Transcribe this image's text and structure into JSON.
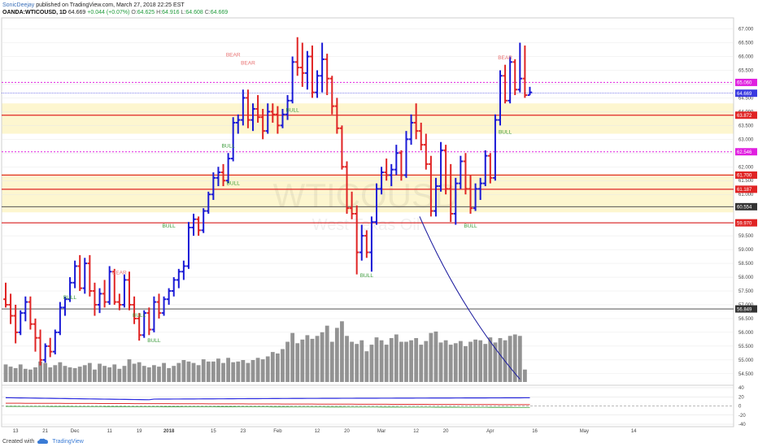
{
  "header": {
    "author": "SonicDeejay",
    "published": "published on TradingView.com, March 27, 2018 22:25 EST",
    "symbol": "OANDA:WTICOUSD, 1D",
    "last": "64.669",
    "change": "+0.044 (+0.07%)",
    "o_label": "O:",
    "o_value": "64.625",
    "h_label": "H:",
    "h_value": "64.916",
    "l_label": "L:",
    "l_value": "64.608",
    "c_label": "C:",
    "c_value": "64.669"
  },
  "footer": {
    "created_with": "Created with",
    "brand": "TradingView"
  },
  "watermark": {
    "symbol": "WTICOUSD",
    "description": "West Texas Oil"
  },
  "colors": {
    "up": "#1a1ad6",
    "down": "#e02424",
    "volume": "#808080",
    "level_red": "#e02424",
    "level_magenta": "#e020e0",
    "zone": "#fdf6cf",
    "last_price": "#3a3ae0",
    "curve": "#1a1a9e",
    "grid": "#e8e8e8"
  },
  "chart_data": {
    "type": "ohlc",
    "ylim": [
      54.2,
      67.4
    ],
    "y_ticks": [
      "67.000",
      "66.500",
      "66.000",
      "65.500",
      "65.000",
      "64.500",
      "64.000",
      "63.500",
      "63.000",
      "62.500",
      "62.000",
      "61.500",
      "61.000",
      "60.500",
      "60.000",
      "59.500",
      "59.000",
      "58.500",
      "58.000",
      "57.500",
      "57.000",
      "56.500",
      "56.000",
      "55.500",
      "55.000",
      "54.500"
    ],
    "x_ticks": [
      {
        "label": "13",
        "i": 2
      },
      {
        "label": "21",
        "i": 8
      },
      {
        "label": "Dec",
        "i": 14
      },
      {
        "label": "11",
        "i": 21
      },
      {
        "label": "19",
        "i": 27
      },
      {
        "label": "2018",
        "i": 33
      },
      {
        "label": "15",
        "i": 42
      },
      {
        "label": "23",
        "i": 48
      },
      {
        "label": "Feb",
        "i": 55
      },
      {
        "label": "12",
        "i": 63
      },
      {
        "label": "20",
        "i": 69
      },
      {
        "label": "Mar",
        "i": 76
      },
      {
        "label": "12",
        "i": 83
      },
      {
        "label": "20",
        "i": 89
      },
      {
        "label": "Apr",
        "i": 98
      },
      {
        "label": "16",
        "i": 107
      },
      {
        "label": "May",
        "i": 117
      },
      {
        "label": "14",
        "i": 127
      }
    ],
    "bars": [
      [
        57.2,
        57.8,
        56.9,
        57.0
      ],
      [
        57.0,
        57.4,
        56.3,
        56.6
      ],
      [
        56.6,
        57.0,
        55.6,
        56.0
      ],
      [
        56.0,
        56.8,
        55.9,
        56.7
      ],
      [
        56.7,
        57.3,
        56.4,
        57.1
      ],
      [
        57.1,
        57.3,
        56.1,
        56.3
      ],
      [
        56.3,
        56.5,
        55.3,
        55.8
      ],
      [
        55.8,
        56.1,
        54.8,
        55.0
      ],
      [
        55.0,
        55.6,
        54.9,
        55.5
      ],
      [
        55.5,
        55.8,
        55.1,
        55.3
      ],
      [
        55.3,
        56.1,
        55.2,
        56.0
      ],
      [
        56.0,
        57.1,
        55.9,
        56.9
      ],
      [
        56.9,
        57.3,
        56.6,
        57.2
      ],
      [
        57.2,
        58.0,
        57.1,
        57.8
      ],
      [
        57.8,
        58.6,
        57.6,
        58.4
      ],
      [
        58.4,
        58.8,
        57.5,
        57.6
      ],
      [
        57.6,
        58.7,
        57.4,
        58.5
      ],
      [
        58.5,
        58.8,
        57.3,
        57.5
      ],
      [
        57.5,
        57.8,
        56.6,
        57.0
      ],
      [
        57.0,
        57.6,
        56.7,
        57.4
      ],
      [
        57.4,
        57.9,
        56.9,
        57.1
      ],
      [
        57.1,
        58.4,
        57.0,
        58.2
      ],
      [
        58.2,
        58.3,
        57.0,
        57.1
      ],
      [
        57.1,
        57.4,
        56.8,
        57.0
      ],
      [
        57.0,
        58.1,
        56.9,
        57.9
      ],
      [
        57.9,
        58.2,
        56.8,
        57.0
      ],
      [
        57.0,
        57.3,
        56.3,
        56.5
      ],
      [
        56.5,
        56.7,
        55.7,
        55.9
      ],
      [
        55.9,
        56.8,
        55.8,
        56.7
      ],
      [
        56.7,
        56.9,
        55.9,
        56.1
      ],
      [
        56.1,
        57.3,
        56.0,
        57.1
      ],
      [
        57.1,
        57.4,
        56.5,
        56.7
      ],
      [
        56.7,
        57.3,
        56.6,
        57.2
      ],
      [
        57.2,
        57.6,
        57.0,
        57.5
      ],
      [
        57.5,
        58.0,
        57.3,
        57.9
      ],
      [
        57.9,
        58.3,
        57.6,
        58.2
      ],
      [
        58.2,
        58.6,
        57.9,
        58.4
      ],
      [
        58.4,
        60.0,
        58.3,
        59.8
      ],
      [
        59.8,
        60.3,
        59.5,
        60.1
      ],
      [
        60.1,
        60.2,
        59.5,
        59.7
      ],
      [
        59.7,
        60.5,
        59.6,
        60.4
      ],
      [
        60.4,
        61.1,
        60.3,
        61.0
      ],
      [
        61.0,
        61.8,
        60.8,
        61.6
      ],
      [
        61.6,
        62.0,
        61.3,
        61.8
      ],
      [
        61.8,
        62.1,
        61.3,
        61.5
      ],
      [
        61.5,
        62.5,
        61.4,
        62.3
      ],
      [
        62.3,
        63.8,
        62.2,
        63.6
      ],
      [
        63.6,
        63.9,
        63.2,
        63.7
      ],
      [
        63.7,
        64.8,
        63.5,
        64.5
      ],
      [
        64.5,
        64.8,
        63.4,
        63.7
      ],
      [
        63.7,
        64.3,
        63.3,
        64.1
      ],
      [
        64.1,
        64.6,
        63.6,
        63.8
      ],
      [
        63.8,
        64.1,
        63.0,
        63.3
      ],
      [
        63.3,
        64.3,
        63.2,
        64.0
      ],
      [
        64.0,
        64.3,
        63.6,
        63.9
      ],
      [
        63.9,
        64.2,
        63.2,
        63.5
      ],
      [
        63.5,
        64.1,
        63.4,
        63.9
      ],
      [
        63.9,
        64.6,
        63.7,
        64.4
      ],
      [
        64.4,
        66.0,
        64.3,
        65.8
      ],
      [
        65.8,
        66.7,
        65.3,
        65.6
      ],
      [
        65.6,
        66.5,
        64.9,
        65.4
      ],
      [
        65.4,
        66.2,
        64.8,
        66.0
      ],
      [
        66.0,
        66.4,
        64.5,
        64.7
      ],
      [
        64.7,
        65.5,
        64.5,
        65.3
      ],
      [
        65.3,
        66.5,
        64.7,
        65.9
      ],
      [
        65.9,
        66.1,
        64.6,
        65.2
      ],
      [
        65.2,
        65.3,
        63.9,
        64.2
      ],
      [
        64.2,
        64.5,
        63.2,
        63.4
      ],
      [
        63.4,
        63.5,
        61.9,
        62.0
      ],
      [
        62.0,
        62.2,
        60.3,
        60.5
      ],
      [
        60.5,
        61.1,
        60.1,
        60.3
      ],
      [
        60.3,
        60.6,
        58.1,
        58.9
      ],
      [
        58.9,
        59.9,
        58.6,
        59.5
      ],
      [
        59.5,
        59.7,
        58.7,
        58.9
      ],
      [
        58.9,
        60.2,
        58.2,
        60.0
      ],
      [
        60.0,
        61.4,
        59.9,
        61.2
      ],
      [
        61.2,
        62.0,
        61.0,
        61.8
      ],
      [
        61.8,
        62.3,
        61.5,
        61.7
      ],
      [
        61.7,
        62.1,
        61.3,
        61.9
      ],
      [
        61.9,
        62.8,
        61.7,
        62.5
      ],
      [
        62.5,
        62.6,
        61.5,
        61.7
      ],
      [
        61.7,
        63.3,
        61.6,
        63.0
      ],
      [
        63.0,
        63.9,
        62.8,
        63.6
      ],
      [
        63.6,
        64.3,
        63.0,
        63.3
      ],
      [
        63.3,
        63.6,
        62.6,
        62.8
      ],
      [
        62.8,
        63.2,
        61.9,
        62.1
      ],
      [
        62.1,
        62.4,
        60.2,
        60.4
      ],
      [
        60.4,
        61.6,
        60.2,
        61.3
      ],
      [
        61.3,
        62.9,
        61.1,
        62.6
      ],
      [
        62.6,
        62.8,
        61.0,
        61.2
      ],
      [
        61.2,
        62.1,
        60.0,
        60.3
      ],
      [
        60.3,
        61.6,
        59.9,
        61.4
      ],
      [
        61.4,
        62.4,
        61.2,
        62.2
      ],
      [
        62.2,
        62.5,
        61.0,
        61.2
      ],
      [
        61.2,
        61.7,
        60.3,
        60.5
      ],
      [
        60.5,
        61.4,
        60.4,
        61.2
      ],
      [
        61.2,
        61.6,
        60.8,
        61.4
      ],
      [
        61.4,
        62.6,
        61.3,
        62.4
      ],
      [
        62.4,
        62.5,
        61.4,
        61.6
      ],
      [
        61.6,
        63.9,
        61.5,
        63.7
      ],
      [
        63.7,
        65.5,
        63.5,
        65.3
      ],
      [
        65.3,
        65.7,
        64.3,
        64.4
      ],
      [
        64.4,
        66.0,
        64.3,
        65.8
      ],
      [
        65.8,
        65.9,
        64.6,
        64.8
      ],
      [
        64.8,
        66.5,
        64.7,
        65.2
      ],
      [
        65.2,
        66.4,
        64.5,
        64.6
      ],
      [
        64.6,
        64.9,
        64.6,
        64.7
      ]
    ],
    "volume": [
      24,
      21,
      19,
      24,
      18,
      17,
      20,
      28,
      26,
      20,
      23,
      27,
      22,
      20,
      19,
      21,
      23,
      26,
      17,
      25,
      22,
      20,
      24,
      18,
      22,
      31,
      25,
      27,
      22,
      20,
      23,
      21,
      26,
      19,
      22,
      26,
      30,
      28,
      26,
      23,
      31,
      28,
      28,
      32,
      26,
      33,
      27,
      28,
      30,
      26,
      30,
      33,
      31,
      35,
      41,
      39,
      45,
      55,
      67,
      53,
      58,
      64,
      59,
      63,
      68,
      77,
      55,
      74,
      83,
      63,
      55,
      52,
      57,
      42,
      51,
      61,
      57,
      51,
      60,
      65,
      55,
      55,
      57,
      60,
      51,
      56,
      67,
      69,
      54,
      57,
      51,
      53,
      56,
      49,
      55,
      58,
      57,
      52,
      61,
      54,
      60,
      57,
      63,
      65,
      63,
      17
    ],
    "level_red": [
      {
        "price": 63.872,
        "label": "63.872"
      },
      {
        "price": 61.7,
        "label": "61.700"
      },
      {
        "price": 61.187,
        "label": "61.187"
      },
      {
        "price": 59.97,
        "label": "59.970"
      }
    ],
    "level_magenta": [
      {
        "price": 65.06,
        "label": "65.060"
      },
      {
        "price": 62.546,
        "label": "62.546"
      }
    ],
    "level_gray": [
      {
        "price": 60.554,
        "label": "60.554"
      },
      {
        "price": 56.849,
        "label": "56.849"
      }
    ],
    "last_price": {
      "price": 64.669,
      "label": "64.669"
    },
    "zones": [
      [
        63.2,
        64.3
      ],
      [
        60.35,
        61.75
      ]
    ],
    "annotations": [
      {
        "text": "BEAR",
        "i": 46,
        "price": 66.0,
        "color": "down"
      },
      {
        "text": "BEAR",
        "i": 49,
        "price": 65.7,
        "color": "down"
      },
      {
        "text": "BEAR",
        "i": 23,
        "price": 58.1,
        "color": "down"
      },
      {
        "text": "BEAR",
        "i": 101,
        "price": 65.9,
        "color": "down"
      },
      {
        "text": "BULL",
        "i": 45,
        "price": 62.7,
        "color": "up"
      },
      {
        "text": "BULL",
        "i": 58,
        "price": 64.0,
        "color": "up"
      },
      {
        "text": "BULL",
        "i": 33,
        "price": 59.8,
        "color": "up"
      },
      {
        "text": "BULL",
        "i": 46,
        "price": 61.35,
        "color": "up"
      },
      {
        "text": "BULL",
        "i": 73,
        "price": 58.0,
        "color": "up"
      },
      {
        "text": "BULL",
        "i": 94,
        "price": 59.8,
        "color": "up"
      },
      {
        "text": "BULL",
        "i": 101,
        "price": 63.2,
        "color": "up"
      },
      {
        "text": "BULL",
        "i": 13,
        "price": 57.2,
        "color": "up"
      },
      {
        "text": "BULL",
        "i": 27,
        "price": 56.55,
        "color": "up"
      },
      {
        "text": "BULL",
        "i": 30,
        "price": 55.65,
        "color": "up"
      }
    ],
    "osc_ticks": [
      "40",
      "20",
      "0",
      "-20",
      "-40"
    ]
  }
}
